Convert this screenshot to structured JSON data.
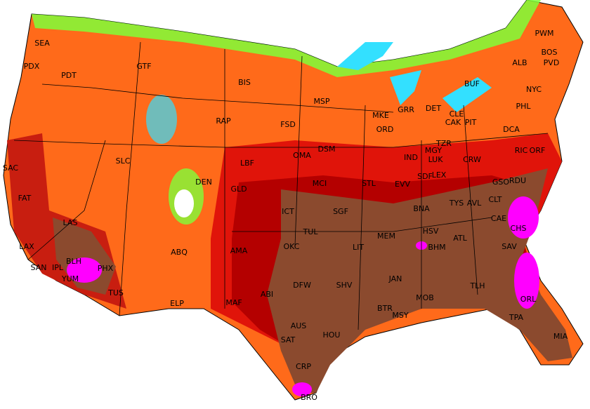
{
  "stations": [
    "SEA",
    "PDX",
    "PDT",
    "GTF",
    "BIS",
    "MSP",
    "MKE",
    "GRR",
    "DET",
    "BUF",
    "ALB",
    "PWM",
    "BOS",
    "PVD",
    "NYC",
    "PHL",
    "DCA",
    "RIC",
    "ORF",
    "PIT",
    "CAK",
    "CLE",
    "FSD",
    "RAP",
    "ORD",
    "IND",
    "DSM",
    "OMA",
    "LBF",
    "SLC",
    "SAC",
    "DEN",
    "GLD",
    "MCI",
    "STL",
    "EVV",
    "SDF",
    "LEX",
    "LUK",
    "MGY",
    "TZR",
    "CRW",
    "GSO",
    "RDU",
    "FAT",
    "LAS",
    "ICT",
    "SGF",
    "BNA",
    "TYS",
    "AVL",
    "CLT",
    "LAX",
    "BLH",
    "PHX",
    "SAN",
    "IPL",
    "YUM",
    "TUS",
    "ABQ",
    "AMA",
    "OKC",
    "TUL",
    "LIT",
    "MEM",
    "HSV",
    "BHM",
    "ATL",
    "CAE",
    "CHS",
    "SAV",
    "ELP",
    "MAF",
    "ABI",
    "DFW",
    "SHV",
    "JAN",
    "MOB",
    "TLH",
    "ORL",
    "TPA",
    "MIA",
    "BTR",
    "MSY",
    "AUS",
    "SAT",
    "HOU",
    "CRP",
    "BRO"
  ]
}
